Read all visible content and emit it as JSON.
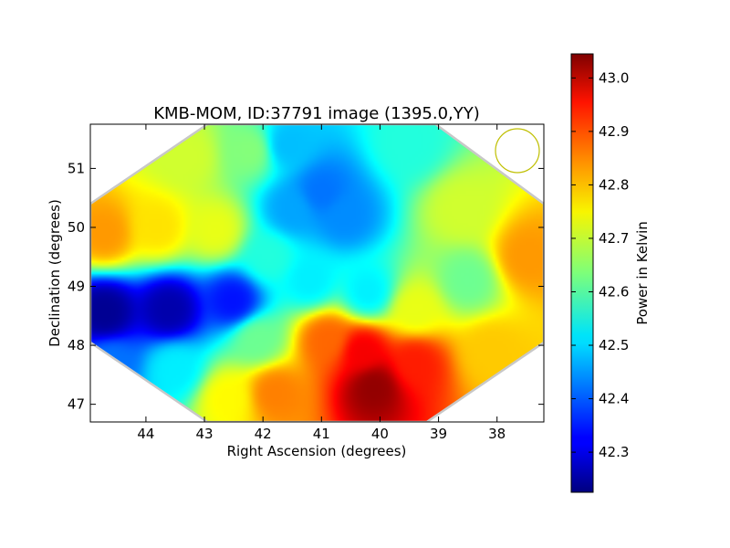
{
  "chart_data": {
    "type": "heatmap",
    "title": "KMB-MOM, ID:37791 image (1395.0,YY)",
    "xlabel": "Right Ascension (degrees)",
    "ylabel": "Declination (degrees)",
    "xlim": [
      44.95,
      37.2
    ],
    "ylim": [
      46.7,
      51.75
    ],
    "x_reversed": true,
    "xticks": [
      44,
      43,
      42,
      41,
      40,
      39,
      38
    ],
    "yticks": [
      47,
      48,
      49,
      50,
      51
    ],
    "colorbar": {
      "label": "Power in Kelvin",
      "range": [
        42.225,
        43.045
      ],
      "ticks": [
        "42.3",
        "42.4",
        "42.5",
        "42.6",
        "42.7",
        "42.8",
        "42.9",
        "43.0"
      ],
      "colormap": "jet"
    },
    "beam_marker_color": "#bfbf00",
    "mask_edge_color": "#c8c8c8",
    "footprint_vertices": [
      [
        44.95,
        50.4
      ],
      [
        42.95,
        51.75
      ],
      [
        39.05,
        51.75
      ],
      [
        37.2,
        50.4
      ],
      [
        37.2,
        48.05
      ],
      [
        39.2,
        46.7
      ],
      [
        42.95,
        46.7
      ],
      [
        44.95,
        48.05
      ]
    ],
    "field_samples": [
      {
        "ra": 44.7,
        "dec": 48.55,
        "value": 42.24
      },
      {
        "ra": 43.6,
        "dec": 48.6,
        "value": 42.26
      },
      {
        "ra": 42.5,
        "dec": 48.75,
        "value": 42.34
      },
      {
        "ra": 44.7,
        "dec": 49.9,
        "value": 42.82
      },
      {
        "ra": 43.8,
        "dec": 50.0,
        "value": 42.76
      },
      {
        "ra": 42.8,
        "dec": 49.95,
        "value": 42.72
      },
      {
        "ra": 44.6,
        "dec": 47.7,
        "value": 42.42
      },
      {
        "ra": 43.5,
        "dec": 47.6,
        "value": 42.52
      },
      {
        "ra": 43.3,
        "dec": 51.2,
        "value": 42.7
      },
      {
        "ra": 42.2,
        "dec": 51.3,
        "value": 42.64
      },
      {
        "ra": 41.0,
        "dec": 50.6,
        "value": 42.42
      },
      {
        "ra": 40.6,
        "dec": 50.2,
        "value": 42.44
      },
      {
        "ra": 41.6,
        "dec": 51.4,
        "value": 42.48
      },
      {
        "ra": 41.5,
        "dec": 50.3,
        "value": 42.46
      },
      {
        "ra": 41.9,
        "dec": 49.5,
        "value": 42.56
      },
      {
        "ra": 41.2,
        "dec": 49.1,
        "value": 42.52
      },
      {
        "ra": 40.2,
        "dec": 48.9,
        "value": 42.52
      },
      {
        "ra": 39.5,
        "dec": 51.4,
        "value": 42.56
      },
      {
        "ra": 38.6,
        "dec": 50.3,
        "value": 42.7
      },
      {
        "ra": 37.5,
        "dec": 49.5,
        "value": 42.82
      },
      {
        "ra": 38.5,
        "dec": 49.1,
        "value": 42.62
      },
      {
        "ra": 39.4,
        "dec": 48.6,
        "value": 42.72
      },
      {
        "ra": 40.1,
        "dec": 47.3,
        "value": 43.03
      },
      {
        "ra": 40.3,
        "dec": 47.9,
        "value": 42.95
      },
      {
        "ra": 40.9,
        "dec": 48.1,
        "value": 42.86
      },
      {
        "ra": 39.4,
        "dec": 47.7,
        "value": 42.92
      },
      {
        "ra": 41.8,
        "dec": 47.2,
        "value": 42.84
      },
      {
        "ra": 42.6,
        "dec": 47.1,
        "value": 42.74
      },
      {
        "ra": 38.1,
        "dec": 47.9,
        "value": 42.78
      },
      {
        "ra": 42.1,
        "dec": 48.1,
        "value": 42.62
      }
    ]
  }
}
